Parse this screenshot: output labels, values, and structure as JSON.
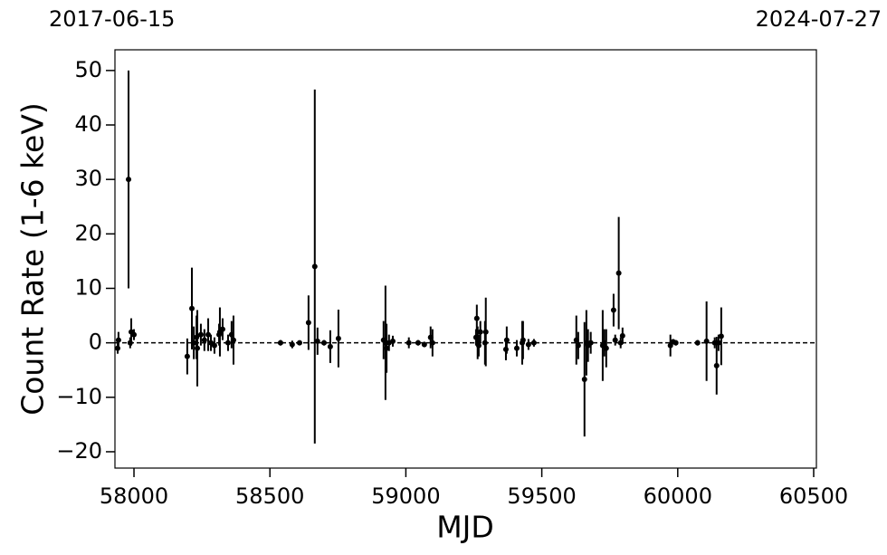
{
  "chart_data": {
    "type": "errorbar_scatter",
    "x_label": "MJD",
    "y_label": "Count Rate (1-6 keV)",
    "top_labels": [
      {
        "value": 57919,
        "label": "2017-06-15"
      },
      {
        "value": 60518,
        "label": "2024-07-27"
      }
    ],
    "color": "#000000",
    "reference_line": 0,
    "xlim": [
      57930,
      60510
    ],
    "ylim": [
      -23,
      53.8
    ],
    "xticks": [
      58000,
      58500,
      59000,
      59500,
      60000,
      60500
    ],
    "yticks": [
      {
        "value": -20,
        "label": "−20"
      },
      {
        "value": -10,
        "label": "−10"
      },
      0,
      10,
      20,
      30,
      40,
      50
    ],
    "x": [
      57943,
      57940,
      57980,
      57990,
      57986,
      58000,
      58196,
      58213,
      58220,
      58230,
      58233,
      58246,
      58259,
      58273,
      58283,
      58296,
      58313,
      58316,
      58326,
      58346,
      58359,
      58366,
      58539,
      58582,
      58609,
      58642,
      58665,
      58675,
      58699,
      58722,
      58752,
      58918,
      58925,
      58929,
      58938,
      58952,
      59011,
      59045,
      59068,
      59091,
      59098,
      59258,
      59261,
      59264,
      59268,
      59274,
      59291,
      59294,
      59368,
      59371,
      59408,
      59428,
      59431,
      59451,
      59471,
      59627,
      59634,
      59657,
      59664,
      59670,
      59680,
      59724,
      59730,
      59737,
      59764,
      59770,
      59783,
      59790,
      59797,
      59973,
      59983,
      59993,
      60073,
      60106,
      60136,
      60143,
      60150,
      60160
    ],
    "values": [
      0.5,
      -1,
      30,
      2,
      0,
      1.5,
      -2.5,
      6.3,
      0,
      1,
      -1,
      1.5,
      0.5,
      1.5,
      0,
      -0.5,
      1.5,
      2,
      2.5,
      0,
      1.5,
      0.5,
      0,
      -0.3,
      0,
      3.7,
      14,
      0.3,
      0,
      -0.7,
      0.8,
      0.5,
      0,
      -1,
      0,
      0.3,
      0,
      0,
      -0.3,
      1,
      0,
      1,
      4.5,
      0,
      -0.5,
      2,
      0,
      2,
      -1.2,
      0.5,
      -1,
      0,
      0.5,
      -0.3,
      0,
      0.5,
      -0.5,
      -6.7,
      0,
      -0.5,
      0,
      -0.5,
      0,
      -1,
      6,
      0.5,
      12.8,
      0,
      1.3,
      -0.5,
      0.2,
      0,
      0,
      0.3,
      0,
      -4.2,
      0,
      1.2
    ],
    "errors": [
      1.5,
      1,
      20,
      2.5,
      1,
      1,
      3.3,
      7.5,
      3,
      4,
      7,
      2,
      2,
      3,
      1.5,
      1.5,
      2,
      4.5,
      2,
      1.5,
      2.5,
      4.5,
      0.5,
      0.7,
      0.4,
      5,
      32.5,
      2.5,
      0.5,
      3,
      5.3,
      3.5,
      10.5,
      4.5,
      1.5,
      1,
      1,
      0.5,
      0.5,
      2,
      2.5,
      1.5,
      2.5,
      3,
      2,
      2,
      4,
      6.3,
      2,
      2.5,
      1.5,
      4,
      3.5,
      1,
      0.7,
      4.5,
      2.5,
      10.5,
      6,
      3,
      2,
      6.5,
      2.5,
      3.5,
      3,
      1,
      10.3,
      1,
      1.5,
      2,
      0.5,
      0.5,
      0.5,
      7.3,
      1,
      5.3,
      1.5,
      5.3
    ]
  }
}
